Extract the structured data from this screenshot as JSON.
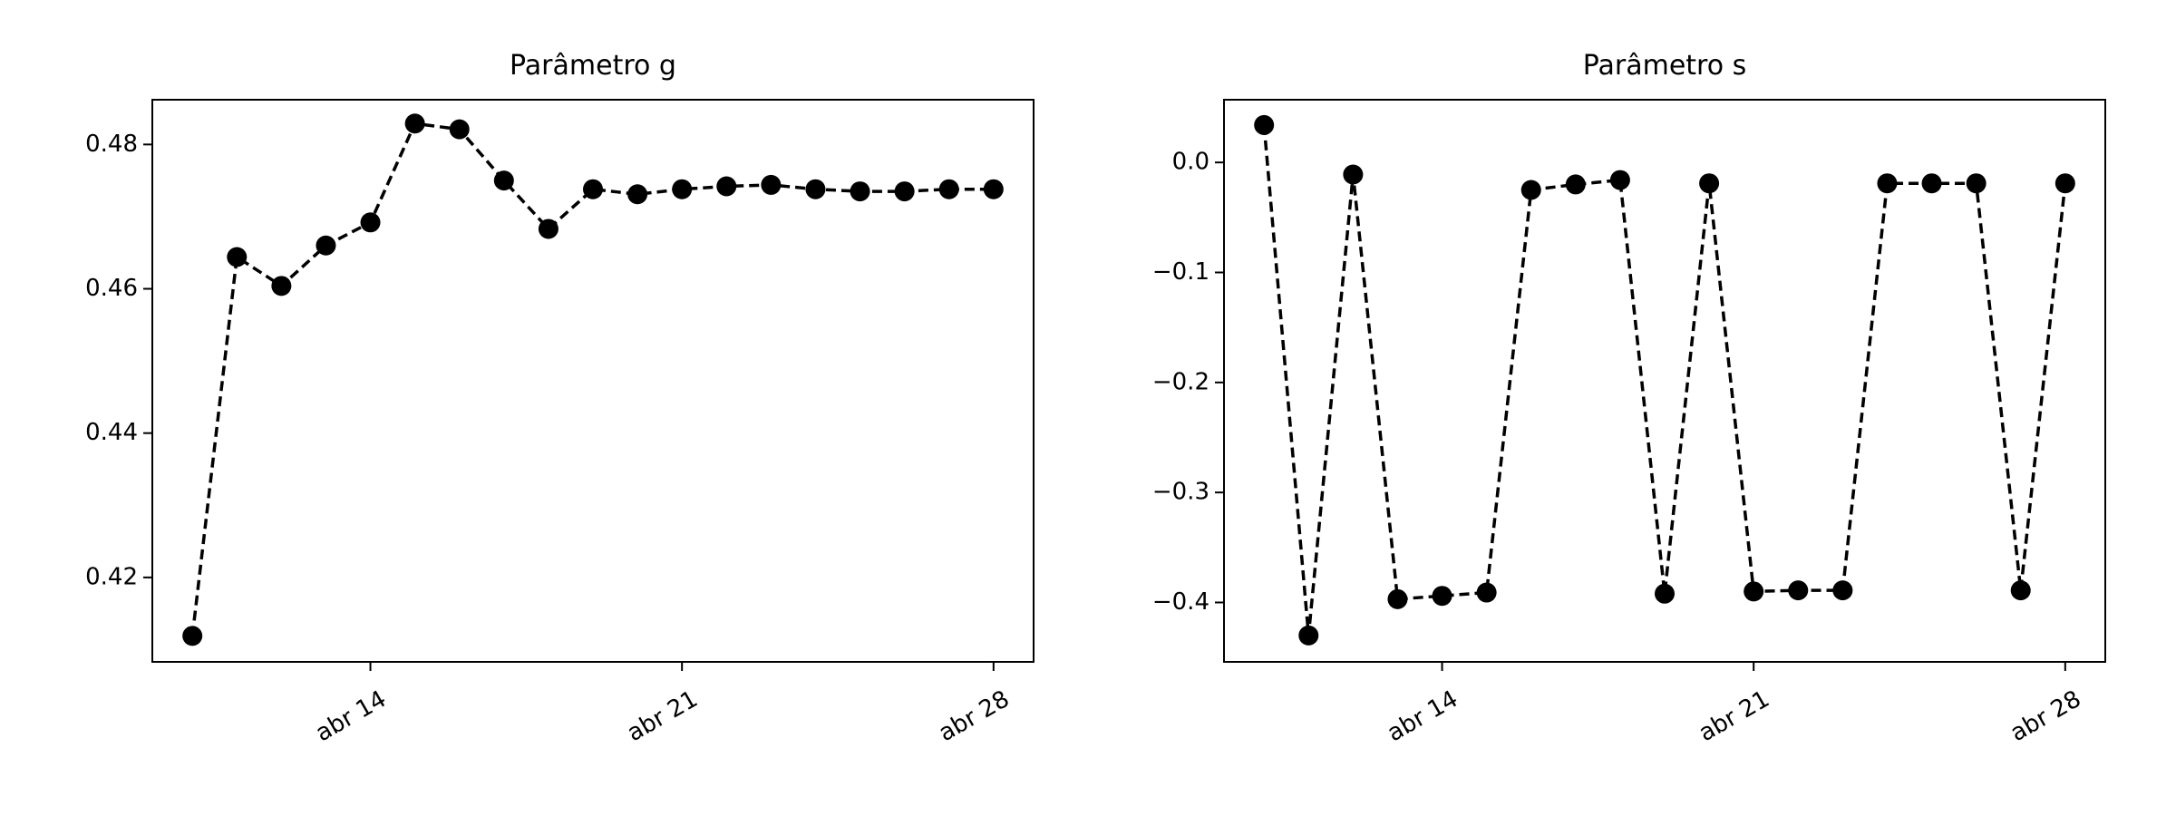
{
  "chart_data": [
    {
      "type": "line",
      "title": "Parâmetro g",
      "x": [
        "abr 10",
        "abr 11",
        "abr 12",
        "abr 13",
        "abr 14",
        "abr 15",
        "abr 16",
        "abr 17",
        "abr 18",
        "abr 19",
        "abr 20",
        "abr 21",
        "abr 22",
        "abr 23",
        "abr 24",
        "abr 25",
        "abr 26",
        "abr 27",
        "abr 28"
      ],
      "values": [
        0.4119,
        0.4644,
        0.4604,
        0.466,
        0.4692,
        0.4829,
        0.4821,
        0.475,
        0.4683,
        0.4738,
        0.4731,
        0.4738,
        0.4742,
        0.4744,
        0.4738,
        0.4735,
        0.4735,
        0.4738,
        0.4738
      ],
      "color": "#000000",
      "ylim": [
        0.4083,
        0.4862
      ],
      "yticks": [
        0.42,
        0.44,
        0.46,
        0.48
      ],
      "xticks": [
        "abr 14",
        "abr 21",
        "abr 28"
      ]
    },
    {
      "type": "line",
      "title": "Parâmetro s",
      "x": [
        "abr 10",
        "abr 11",
        "abr 12",
        "abr 13",
        "abr 14",
        "abr 15",
        "abr 16",
        "abr 17",
        "abr 18",
        "abr 19",
        "abr 20",
        "abr 21",
        "abr 22",
        "abr 23",
        "abr 24",
        "abr 25",
        "abr 26",
        "abr 27",
        "abr 28"
      ],
      "values": [
        0.034,
        -0.43,
        -0.011,
        -0.397,
        -0.394,
        -0.391,
        -0.025,
        -0.02,
        -0.016,
        -0.392,
        -0.019,
        -0.39,
        -0.389,
        -0.389,
        -0.019,
        -0.019,
        -0.019,
        -0.389,
        -0.019
      ],
      "color": "#000000",
      "ylim": [
        -0.454,
        0.057
      ],
      "yticks": [
        {
          "value": -0.4,
          "label": "−0.4"
        },
        {
          "value": -0.3,
          "label": "−0.3"
        },
        {
          "value": -0.2,
          "label": "−0.2"
        },
        {
          "value": -0.1,
          "label": "−0.1"
        },
        {
          "value": 0,
          "label": "0.0"
        }
      ],
      "xticks": [
        "abr 14",
        "abr 21",
        "abr 28"
      ]
    }
  ]
}
